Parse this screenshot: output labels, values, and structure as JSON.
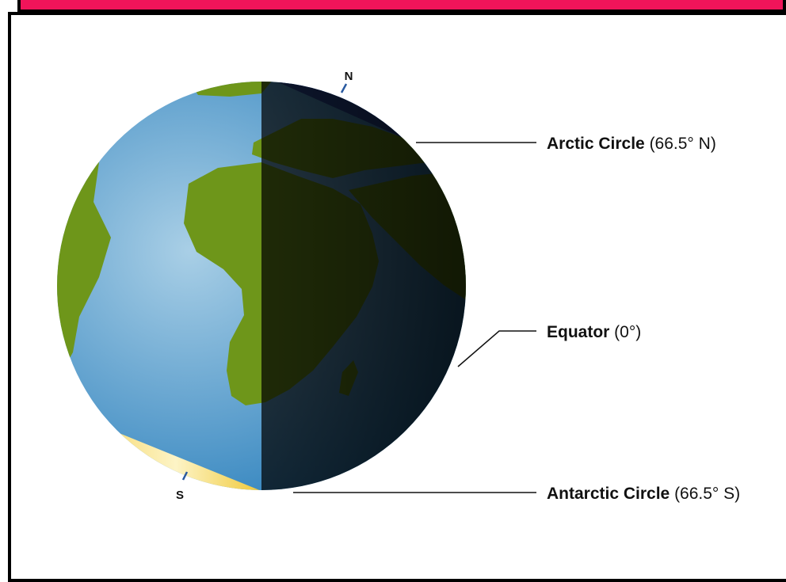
{
  "colors": {
    "banner": "#f0145a",
    "ocean_day": "#5aa0cf",
    "ocean_night": "#03243d",
    "land_day": "#6e961a",
    "land_night": "#1a2a08",
    "arctic_cap": "#2b4a9a",
    "antarctic_cap": "#f3d35a"
  },
  "icons": {
    "globe": "earth-globe-icon"
  },
  "poles": {
    "north": "N",
    "south": "S"
  },
  "labels": {
    "arctic": {
      "name": "Arctic Circle",
      "value": " (66.5° N)"
    },
    "equator": {
      "name": "Equator",
      "value": " (0°)"
    },
    "antarctic": {
      "name": "Antarctic Circle",
      "value": " (66.5° S)"
    }
  }
}
